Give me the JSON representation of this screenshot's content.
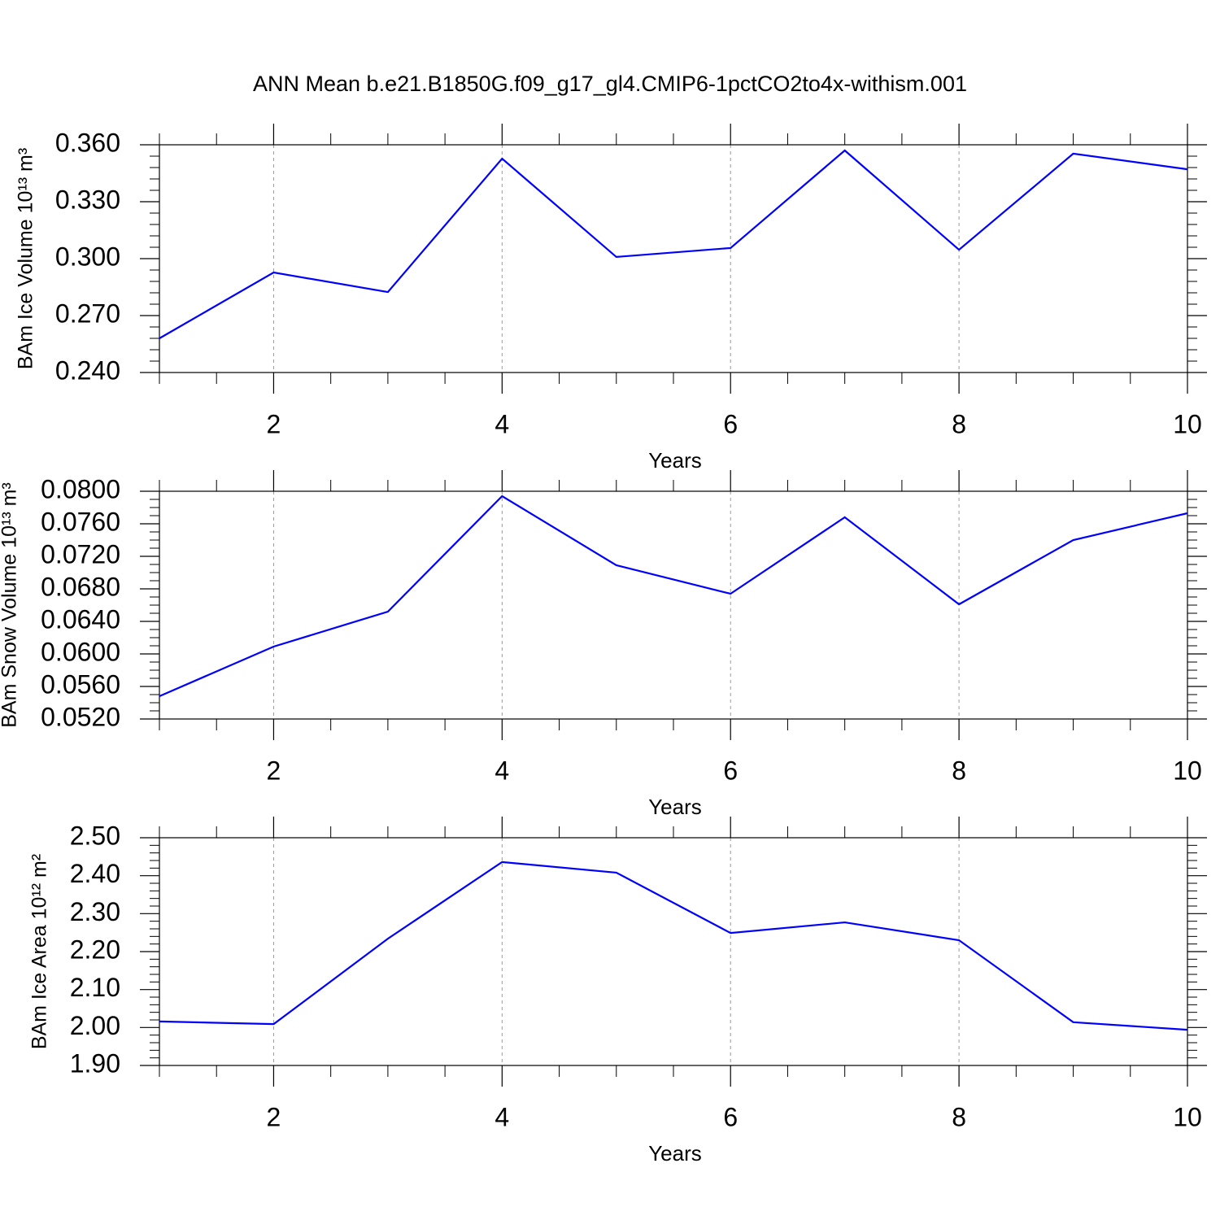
{
  "title": "ANN Mean b.e21.B1850G.f09_g17_gl4.CMIP6-1pctCO2to4x-withism.001",
  "chart_data": [
    {
      "type": "line",
      "ylabel": "BAm Ice Volume 10¹³ m³",
      "xlabel": "Years",
      "x": [
        1,
        2,
        3,
        4,
        5,
        6,
        7,
        8,
        9,
        10
      ],
      "series": [
        {
          "color": "#0000ff",
          "values": [
            0.258,
            0.2927,
            0.2824,
            0.3527,
            0.3009,
            0.3056,
            0.357,
            0.3047,
            0.3553,
            0.3471
          ]
        }
      ],
      "xlim": [
        1,
        10
      ],
      "xticks": [
        2,
        4,
        6,
        8,
        10
      ],
      "ylim": [
        0.24,
        0.36
      ],
      "yticks": [
        {
          "value": 0.24,
          "label": "0.240"
        },
        {
          "value": 0.27,
          "label": "0.270"
        },
        {
          "value": 0.3,
          "label": "0.300"
        },
        {
          "value": 0.33,
          "label": "0.330"
        },
        {
          "value": 0.36,
          "label": "0.360"
        }
      ],
      "grid": "x",
      "xminor": 3,
      "yminor": 4
    },
    {
      "type": "line",
      "ylabel": "BAm Snow Volume 10¹³ m³",
      "xlabel": "Years",
      "x": [
        1,
        2,
        3,
        4,
        5,
        6,
        7,
        8,
        9,
        10
      ],
      "series": [
        {
          "color": "#0000ff",
          "values": [
            0.0548,
            0.0609,
            0.0652,
            0.0794,
            0.0709,
            0.0674,
            0.0768,
            0.0661,
            0.074,
            0.0773
          ]
        }
      ],
      "xlim": [
        1,
        10
      ],
      "xticks": [
        2,
        4,
        6,
        8,
        10
      ],
      "ylim": [
        0.052,
        0.08
      ],
      "yticks": [
        {
          "value": 0.052,
          "label": "0.0520"
        },
        {
          "value": 0.056,
          "label": "0.0560"
        },
        {
          "value": 0.06,
          "label": "0.0600"
        },
        {
          "value": 0.064,
          "label": "0.0640"
        },
        {
          "value": 0.068,
          "label": "0.0680"
        },
        {
          "value": 0.072,
          "label": "0.0720"
        },
        {
          "value": 0.076,
          "label": "0.0760"
        },
        {
          "value": 0.08,
          "label": "0.0800"
        }
      ],
      "grid": "x",
      "xminor": 3,
      "yminor": 3
    },
    {
      "type": "line",
      "ylabel": "BAm Ice Area 10¹² m²",
      "xlabel": "Years",
      "x": [
        1,
        2,
        3,
        4,
        5,
        6,
        7,
        8,
        9,
        10
      ],
      "series": [
        {
          "color": "#0000ff",
          "values": [
            2.016,
            2.009,
            2.234,
            2.436,
            2.408,
            2.249,
            2.277,
            2.23,
            2.014,
            1.994
          ]
        }
      ],
      "xlim": [
        1,
        10
      ],
      "xticks": [
        2,
        4,
        6,
        8,
        10
      ],
      "ylim": [
        1.9,
        2.5
      ],
      "yticks": [
        {
          "value": 1.9,
          "label": "1.90"
        },
        {
          "value": 2.0,
          "label": "2.00"
        },
        {
          "value": 2.1,
          "label": "2.10"
        },
        {
          "value": 2.2,
          "label": "2.20"
        },
        {
          "value": 2.3,
          "label": "2.30"
        },
        {
          "value": 2.4,
          "label": "2.40"
        },
        {
          "value": 2.5,
          "label": "2.50"
        }
      ],
      "grid": "x",
      "xminor": 3,
      "yminor": 4
    }
  ]
}
